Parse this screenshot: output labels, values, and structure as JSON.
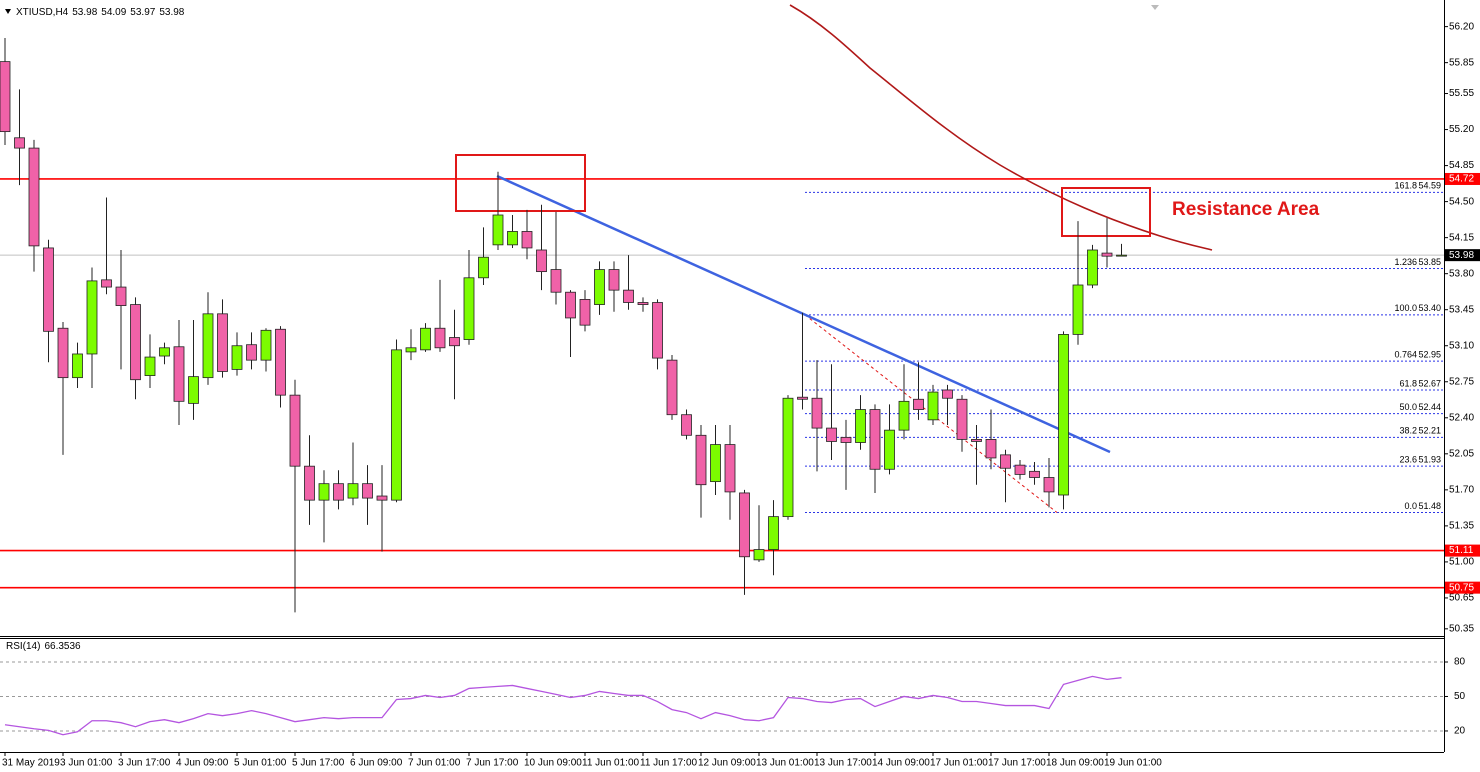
{
  "chart_data": [
    {
      "type": "candlestick",
      "title": "XTIUSD,H4",
      "categories": [
        "31 May 2019",
        null,
        null,
        null,
        "3 Jun 01:00",
        null,
        null,
        null,
        "3 Jun 17:00",
        null,
        null,
        null,
        "4 Jun 09:00",
        null,
        null,
        null,
        "5 Jun 01:00",
        null,
        null,
        null,
        "5 Jun 17:00",
        null,
        null,
        null,
        "6 Jun 09:00",
        null,
        null,
        null,
        "7 Jun 01:00",
        null,
        null,
        null,
        "7 Jun 17:00",
        null,
        null,
        null,
        "10 Jun 09:00",
        null,
        null,
        null,
        "11 Jun 01:00",
        null,
        null,
        null,
        "11 Jun 17:00",
        null,
        null,
        null,
        "12 Jun 09:00",
        null,
        null,
        null,
        "13 Jun 01:00",
        null,
        null,
        null,
        "13 Jun 17:00",
        null,
        null,
        null,
        "14 Jun 09:00",
        null,
        null,
        null,
        "17 Jun 01:00",
        null,
        null,
        null,
        "17 Jun 17:00",
        null,
        null,
        null,
        "18 Jun 09:00",
        null,
        null,
        null,
        "19 Jun 01:00",
        null
      ],
      "open": [
        55.86,
        55.12,
        55.02,
        54.05,
        53.27,
        52.79,
        53.02,
        53.74,
        53.67,
        53.5,
        52.81,
        53.0,
        53.09,
        52.54,
        52.79,
        53.41,
        52.87,
        53.11,
        52.96,
        53.26,
        52.62,
        51.93,
        51.6,
        51.76,
        51.62,
        51.76,
        51.64,
        51.6,
        53.04,
        53.06,
        53.27,
        53.18,
        53.16,
        53.76,
        54.08,
        54.08,
        54.21,
        54.03,
        53.84,
        53.62,
        53.55,
        53.5,
        53.84,
        53.64,
        53.52,
        53.52,
        52.96,
        52.43,
        52.23,
        51.78,
        52.14,
        51.67,
        51.02,
        51.12,
        51.44,
        52.6,
        52.59,
        52.3,
        52.21,
        52.16,
        52.48,
        51.9,
        52.28,
        52.58,
        52.38,
        52.67,
        52.58,
        52.19,
        52.19,
        52.04,
        51.94,
        51.88,
        51.82,
        51.65,
        53.21,
        53.69,
        54.0,
        53.98
      ],
      "high": [
        56.09,
        55.59,
        55.1,
        54.13,
        53.33,
        53.13,
        53.86,
        54.54,
        54.03,
        53.57,
        53.21,
        53.13,
        53.35,
        53.35,
        53.62,
        53.55,
        53.23,
        53.23,
        53.27,
        53.29,
        52.77,
        52.23,
        51.89,
        51.89,
        52.16,
        51.94,
        51.94,
        53.16,
        53.26,
        53.32,
        53.74,
        53.45,
        54.03,
        54.25,
        54.79,
        54.37,
        54.42,
        54.47,
        54.4,
        53.64,
        53.64,
        53.92,
        53.92,
        53.98,
        53.57,
        53.55,
        53.01,
        52.48,
        52.33,
        52.33,
        52.33,
        51.7,
        51.55,
        51.6,
        52.62,
        53.42,
        52.96,
        52.92,
        52.38,
        52.62,
        52.53,
        52.53,
        52.92,
        52.94,
        52.72,
        52.72,
        52.62,
        52.33,
        52.48,
        52.09,
        51.99,
        51.97,
        52.01,
        53.24,
        54.31,
        54.08,
        54.34,
        54.09
      ],
      "low": [
        55.05,
        54.66,
        53.82,
        52.94,
        52.04,
        52.69,
        52.69,
        53.6,
        52.87,
        52.58,
        52.69,
        52.92,
        52.33,
        52.38,
        52.72,
        52.79,
        52.81,
        52.87,
        52.85,
        52.5,
        50.51,
        51.36,
        51.19,
        51.51,
        51.55,
        51.36,
        51.1,
        51.58,
        52.96,
        53.04,
        53.04,
        52.58,
        53.11,
        53.69,
        54.03,
        54.05,
        53.94,
        53.64,
        53.5,
        52.99,
        53.24,
        53.4,
        53.43,
        53.45,
        53.43,
        52.87,
        52.38,
        52.19,
        51.43,
        51.65,
        51.41,
        50.68,
        51.0,
        50.87,
        51.41,
        52.48,
        51.88,
        51.99,
        51.7,
        52.09,
        51.67,
        51.85,
        52.19,
        52.38,
        52.33,
        52.33,
        52.07,
        51.75,
        51.9,
        51.58,
        51.8,
        51.75,
        51.53,
        51.51,
        53.11,
        53.66,
        53.86,
        53.97
      ],
      "close": [
        55.18,
        55.02,
        54.07,
        53.24,
        52.79,
        53.02,
        53.73,
        53.67,
        53.49,
        52.77,
        52.99,
        53.08,
        52.56,
        52.8,
        53.41,
        52.85,
        53.1,
        52.96,
        53.25,
        52.62,
        51.93,
        51.6,
        51.76,
        51.6,
        51.76,
        51.62,
        51.6,
        53.06,
        53.08,
        53.27,
        53.08,
        53.1,
        53.76,
        53.96,
        54.37,
        54.21,
        54.05,
        53.82,
        53.62,
        53.37,
        53.3,
        53.84,
        53.64,
        53.52,
        53.5,
        52.98,
        52.43,
        52.23,
        51.75,
        52.14,
        51.68,
        51.05,
        51.12,
        51.44,
        52.59,
        52.58,
        52.3,
        52.17,
        52.16,
        52.48,
        51.9,
        52.28,
        52.56,
        52.48,
        52.65,
        52.59,
        52.19,
        52.17,
        52.01,
        51.91,
        51.85,
        51.82,
        51.68,
        53.21,
        53.69,
        54.03,
        53.97,
        53.98
      ],
      "up_color": "#7cfc00",
      "down_color": "#f062a8",
      "ylim": [
        50.29,
        56.41
      ],
      "yticks": [
        {
          "value": 56.2,
          "label": "56.20"
        },
        55.85,
        55.55,
        {
          "value": 55.2,
          "label": "55.20"
        },
        54.85,
        {
          "value": 54.5,
          "label": "54.50"
        },
        54.15,
        {
          "value": 53.8,
          "label": "53.80"
        },
        53.45,
        {
          "value": 53.1,
          "label": "53.10"
        },
        52.75,
        {
          "value": 52.4,
          "label": "52.40"
        },
        52.05,
        {
          "value": 51.7,
          "label": "51.70"
        },
        51.35,
        {
          "value": 51.0,
          "label": "51.00"
        },
        50.65,
        50.35
      ],
      "hlines": [
        54.72,
        51.11,
        50.75
      ],
      "hline_color": "#ff0000",
      "fib_color": "#2b35e6",
      "fib_levels": [
        {
          "ratio": "161.8",
          "price": 54.59
        },
        {
          "ratio": "1.236",
          "price": 53.85
        },
        {
          "ratio": "100.0",
          "price": {
            "value": 53.4,
            "label": "53.40"
          }
        },
        {
          "ratio": "0.764",
          "price": 52.95
        },
        {
          "ratio": "61.8",
          "price": 52.67
        },
        {
          "ratio": "50.0",
          "price": 52.44
        },
        {
          "ratio": "38.2",
          "price": 52.21
        },
        {
          "ratio": "23.6",
          "price": 51.93
        },
        {
          "ratio": "0.0",
          "price": 51.48
        }
      ],
      "annotation": "Resistance Area"
    },
    {
      "type": "line",
      "title": "RSI(14)",
      "color": "#b455e0",
      "values": [
        25.4,
        23.7,
        21.9,
        20.5,
        16.7,
        19.3,
        28.9,
        28.9,
        27.2,
        23.7,
        28.1,
        29.8,
        27.2,
        30.7,
        35.1,
        33.3,
        35.1,
        37.7,
        35.1,
        31.6,
        28.1,
        29.8,
        31.6,
        30.7,
        31.6,
        31.6,
        31.6,
        47.4,
        48.2,
        50.9,
        49.1,
        50.9,
        57.0,
        57.9,
        58.8,
        59.6,
        57.0,
        54.4,
        51.8,
        49.1,
        50.9,
        54.4,
        52.6,
        50.9,
        50.9,
        45.6,
        38.6,
        36.0,
        30.7,
        36.0,
        33.3,
        29.8,
        28.9,
        31.6,
        49.1,
        48.2,
        45.6,
        44.7,
        47.4,
        48.2,
        41.2,
        45.6,
        50.0,
        48.2,
        50.9,
        49.1,
        45.6,
        45.6,
        43.9,
        42.1,
        42.1,
        42.1,
        39.5,
        60.5,
        64.0,
        67.5,
        64.9,
        66.3536
      ],
      "ylim": [
        1.7,
        100
      ],
      "yticks": [
        20,
        50,
        80
      ]
    }
  ]
}
